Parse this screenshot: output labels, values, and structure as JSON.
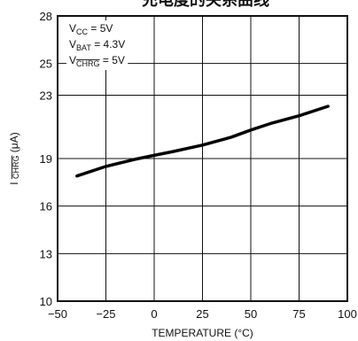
{
  "chart_data": {
    "type": "line",
    "title": "充电度的关系曲线",
    "xlabel": "TEMPERATURE (°C)",
    "ylabel": {
      "main": "I",
      "sub": "CHRG",
      "unit": " (μA)"
    },
    "xlim": [
      -50,
      100
    ],
    "ylim": [
      10,
      28
    ],
    "x_ticks": [
      -50,
      -25,
      0,
      25,
      50,
      75,
      100
    ],
    "x_tick_labels": [
      "−50",
      "−25",
      "0",
      "25",
      "50",
      "75",
      "100"
    ],
    "y_ticks": [
      10,
      13,
      16,
      19,
      23,
      25,
      28
    ],
    "y_tick_labels": [
      "10",
      "13",
      "16",
      "19",
      "23",
      "25",
      "28"
    ],
    "grid": true,
    "series": [
      {
        "x": [
          -40,
          -25,
          -10,
          0,
          10,
          25,
          40,
          50,
          60,
          75,
          90
        ],
        "y": [
          17.9,
          18.5,
          18.95,
          19.2,
          19.45,
          19.85,
          20.35,
          20.8,
          21.2,
          21.7,
          22.3
        ]
      }
    ],
    "annotations": [
      {
        "base": "V",
        "sub": "CC",
        "rest": " = 5V"
      },
      {
        "base": "V",
        "sub": "BAT",
        "rest": " = 4.3V"
      },
      {
        "base": "V",
        "sub": "CHRG",
        "rest": " = 5V"
      }
    ]
  }
}
